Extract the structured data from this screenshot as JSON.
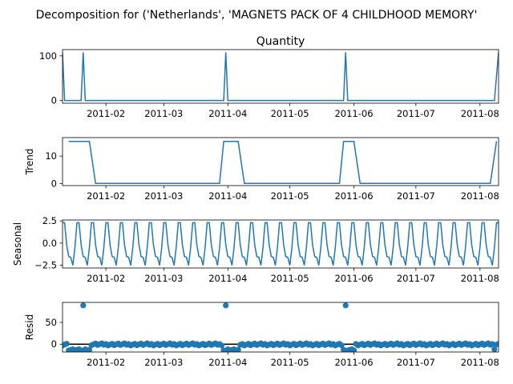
{
  "figure": {
    "suptitle": "Decomposition for ('Netherlands', 'MAGNETS PACK OF 4 CHILDHOOD MEMORY'",
    "line_color": "#1f77b4",
    "resid_zero_line_color": "#000000"
  },
  "chart_data": [
    {
      "type": "line",
      "title": "Quantity",
      "ylabel": "",
      "x_range": [
        "2011-01-11",
        "2011-08-10"
      ],
      "ylim": [
        -6,
        114
      ],
      "yticks": [
        0,
        100
      ],
      "xticks": [
        "2011-02",
        "2011-03",
        "2011-04",
        "2011-05",
        "2011-06",
        "2011-07",
        "2011-08"
      ],
      "series": [
        {
          "x": [
            "2011-01-11",
            "2011-01-12",
            "2011-01-20",
            "2011-01-21",
            "2011-01-22",
            "2011-03-30",
            "2011-03-31",
            "2011-04-01",
            "2011-05-27",
            "2011-05-28",
            "2011-05-29",
            "2011-08-08",
            "2011-08-10"
          ],
          "values": [
            108,
            0,
            0,
            108,
            0,
            0,
            108,
            0,
            0,
            108,
            0,
            0,
            108
          ]
        }
      ]
    },
    {
      "type": "line",
      "title": "",
      "ylabel": "Trend",
      "x_range": [
        "2011-01-11",
        "2011-08-10"
      ],
      "ylim": [
        -0.8,
        16.8
      ],
      "yticks": [
        0,
        10
      ],
      "xticks": [
        "2011-02",
        "2011-03",
        "2011-04",
        "2011-05",
        "2011-06",
        "2011-07",
        "2011-08"
      ],
      "series": [
        {
          "x": [
            "2011-01-14",
            "2011-01-24",
            "2011-01-27",
            "2011-03-28",
            "2011-03-30",
            "2011-04-06",
            "2011-04-09",
            "2011-05-25",
            "2011-05-27",
            "2011-06-01",
            "2011-06-04",
            "2011-08-06",
            "2011-08-09"
          ],
          "values": [
            15.4,
            15.4,
            0,
            0,
            15.4,
            15.4,
            0,
            0,
            15.4,
            15.4,
            0,
            0,
            15.4
          ]
        }
      ]
    },
    {
      "type": "line",
      "title": "",
      "ylabel": "Seasonal",
      "x_range": [
        "2011-01-11",
        "2011-08-10"
      ],
      "ylim": [
        -2.8,
        2.6
      ],
      "yticks": [
        -2.5,
        0.0,
        2.5
      ],
      "xticks": [
        "2011-02",
        "2011-03",
        "2011-04",
        "2011-05",
        "2011-06",
        "2011-07",
        "2011-08"
      ],
      "period_days": 7,
      "weekly_pattern": [
        2.3,
        2.3,
        -0.2,
        -1.5,
        -1.6,
        -2.5,
        -0.5
      ],
      "series": [
        {
          "name": "",
          "values": []
        }
      ]
    },
    {
      "type": "scatter",
      "title": "",
      "ylabel": "Resid",
      "x_range": [
        "2011-01-11",
        "2011-08-10"
      ],
      "ylim": [
        -18,
        96
      ],
      "yticks": [
        0,
        50
      ],
      "xticks": [
        "2011-02",
        "2011-03",
        "2011-04",
        "2011-05",
        "2011-06",
        "2011-07",
        "2011-08"
      ],
      "zero_line": 0,
      "outliers": [
        {
          "x": "2011-01-21",
          "y": 89
        },
        {
          "x": "2011-03-31",
          "y": 89
        },
        {
          "x": "2011-05-28",
          "y": 89
        }
      ],
      "low_ranges": [
        {
          "from": "2011-01-14",
          "to": "2011-01-24",
          "y": -13
        },
        {
          "from": "2011-03-30",
          "to": "2011-04-06",
          "y": -13
        },
        {
          "from": "2011-05-27",
          "to": "2011-06-01",
          "y": -13
        },
        {
          "from": "2011-08-08",
          "to": "2011-08-08",
          "y": -13
        }
      ],
      "baseline_band": [
        -3,
        2
      ]
    }
  ]
}
